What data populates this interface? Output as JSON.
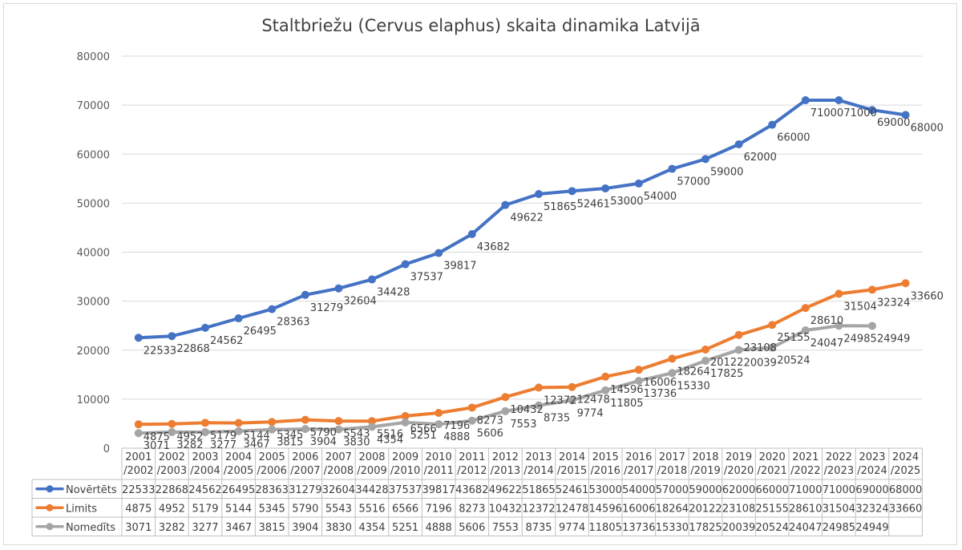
{
  "chart_data": {
    "type": "line",
    "title": "Staltbriežu (Cervus elaphus) skaita dinamika Latvijā",
    "categories": [
      [
        "2001",
        "/2002"
      ],
      [
        "2002",
        "/2003"
      ],
      [
        "2003",
        "/2004"
      ],
      [
        "2004",
        "/2005"
      ],
      [
        "2005",
        "/2006"
      ],
      [
        "2006",
        "/2007"
      ],
      [
        "2007",
        "/2008"
      ],
      [
        "2008",
        "/2009"
      ],
      [
        "2009",
        "/2010"
      ],
      [
        "2010",
        "/2011"
      ],
      [
        "2011",
        "/2012"
      ],
      [
        "2012",
        "/2013"
      ],
      [
        "2013",
        "/2014"
      ],
      [
        "2014",
        "/2015"
      ],
      [
        "2015",
        "/2016"
      ],
      [
        "2016",
        "/2017"
      ],
      [
        "2017",
        "/2018"
      ],
      [
        "2018",
        "/2019"
      ],
      [
        "2019",
        "/2020"
      ],
      [
        "2020",
        "/2021"
      ],
      [
        "2021",
        "/2022"
      ],
      [
        "2022",
        "/2023"
      ],
      [
        "2023",
        "/2024"
      ],
      [
        "2024",
        "/2025"
      ]
    ],
    "y_ticks": [
      0,
      10000,
      20000,
      30000,
      40000,
      50000,
      60000,
      70000,
      80000
    ],
    "ylim": [
      0,
      80000
    ],
    "grid": true,
    "legend": "data-table",
    "series": [
      {
        "name": "Novērtēts",
        "color": "#4472c4",
        "values": [
          22533,
          22868,
          24562,
          26495,
          28363,
          31279,
          32604,
          34428,
          37537,
          39817,
          43682,
          49622,
          51865,
          52461,
          53000,
          54000,
          57000,
          59000,
          62000,
          66000,
          71000,
          71000,
          69000,
          68000
        ]
      },
      {
        "name": "Limits",
        "color": "#ed7d31",
        "values": [
          4875,
          4952,
          5179,
          5144,
          5345,
          5790,
          5543,
          5516,
          6566,
          7196,
          8273,
          10432,
          12372,
          12478,
          14596,
          16006,
          18264,
          20122,
          23108,
          25155,
          28610,
          31504,
          32324,
          33660
        ]
      },
      {
        "name": "Nomedīts",
        "color": "#a5a5a5",
        "values": [
          3071,
          3282,
          3277,
          3467,
          3815,
          3904,
          3830,
          4354,
          5251,
          4888,
          5606,
          7553,
          8735,
          9774,
          11805,
          13736,
          15330,
          17825,
          20039,
          20524,
          24047,
          24985,
          24949,
          null
        ]
      }
    ]
  }
}
